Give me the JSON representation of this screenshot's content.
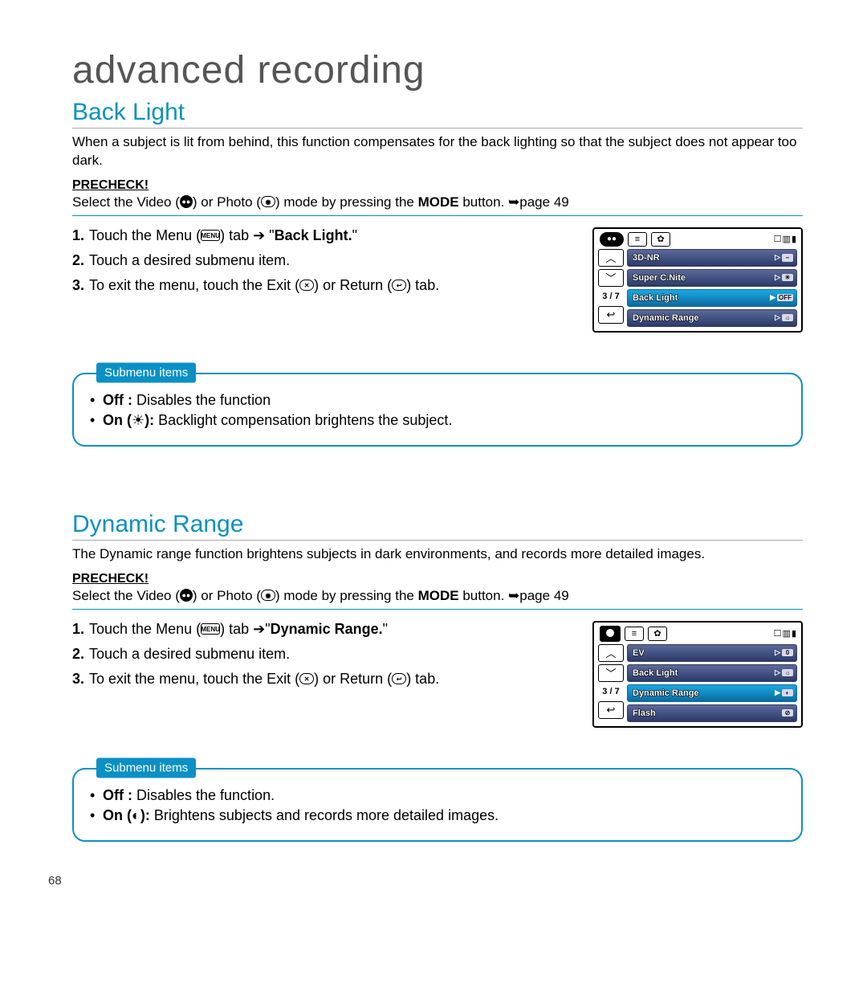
{
  "chapter_title": "advanced recording",
  "page_number": "68",
  "colors": {
    "accent": "#0b90c4"
  },
  "sections": [
    {
      "title": "Back Light",
      "intro": "When a subject is lit from behind, this function compensates for the back lighting so that the subject does not appear too dark.",
      "precheck_label": "PRECHECK!",
      "precheck_pre": "Select the Video (",
      "precheck_mid": ") or Photo (",
      "precheck_post": ") mode by pressing the ",
      "precheck_bold": "MODE",
      "precheck_tail": " button. ➥page 49",
      "steps": [
        {
          "num": "1.",
          "pre": "Touch the Menu (",
          "icon": "MENU",
          "mid": ") tab ➔ \"",
          "bold": "Back Light.",
          "post": "\""
        },
        {
          "num": "2.",
          "text": "Touch a desired submenu item."
        },
        {
          "num": "3.",
          "pre": "To exit the menu, touch the Exit (",
          "icon": "✕",
          "mid": ") or Return (",
          "icon2": "↩",
          "post": ") tab."
        }
      ],
      "lcd": {
        "mode_shape": "pill",
        "mode_glyph": "●●",
        "counter": "3 / 7",
        "rows": [
          {
            "label": "3D-NR",
            "right": "▷",
            "chip": "⎯",
            "sel": false
          },
          {
            "label": "Super C.Nite",
            "right": "▷",
            "chip": "☀",
            "sel": false
          },
          {
            "label": "Back Light",
            "right": "▶",
            "chip": "OFF",
            "sel": true
          },
          {
            "label": "Dynamic Range",
            "right": "▷",
            "chip": "☼",
            "sel": false
          }
        ]
      },
      "submenu_label": "Submenu items",
      "submenu": [
        {
          "bold": "Off :",
          "text": " Disables the function"
        },
        {
          "bold": "On (",
          "icon": true,
          "bold2": "):",
          "text": " Backlight compensation brightens the subject."
        }
      ]
    },
    {
      "title": "Dynamic Range",
      "intro": "The Dynamic range function brightens subjects in dark environments, and records more detailed images.",
      "precheck_label": "PRECHECK!",
      "precheck_pre": "Select the Video (",
      "precheck_mid": ") or Photo (",
      "precheck_post": ") mode by pressing the ",
      "precheck_bold": "MODE",
      "precheck_tail": " button. ➥page 49",
      "steps": [
        {
          "num": "1.",
          "pre": "Touch the Menu (",
          "icon": "MENU",
          "mid": ") tab ➔\"",
          "bold": "Dynamic Range.",
          "post": "\""
        },
        {
          "num": "2.",
          "text": "Touch a desired submenu item."
        },
        {
          "num": "3.",
          "pre": "To exit the menu, touch the Exit (",
          "icon": "✕",
          "mid": ") or Return (",
          "icon2": "↩",
          "post": ") tab."
        }
      ],
      "lcd": {
        "mode_shape": "cam",
        "mode_glyph": "",
        "counter": "3 / 7",
        "rows": [
          {
            "label": "EV",
            "right": "▷",
            "chip": "0",
            "sel": false
          },
          {
            "label": "Back Light",
            "right": "▷",
            "chip": "☼",
            "sel": false
          },
          {
            "label": "Dynamic Range",
            "right": "▶",
            "chip": "◐",
            "sel": true
          },
          {
            "label": "Flash",
            "right": "",
            "chip": "⊘",
            "sel": false
          }
        ]
      },
      "submenu_label": "Submenu items",
      "submenu": [
        {
          "bold": "Off :",
          "text": " Disables the function."
        },
        {
          "bold": "On (",
          "icon": true,
          "bold2": "):",
          "text": " Brightens subjects and records more detailed images."
        }
      ]
    }
  ]
}
